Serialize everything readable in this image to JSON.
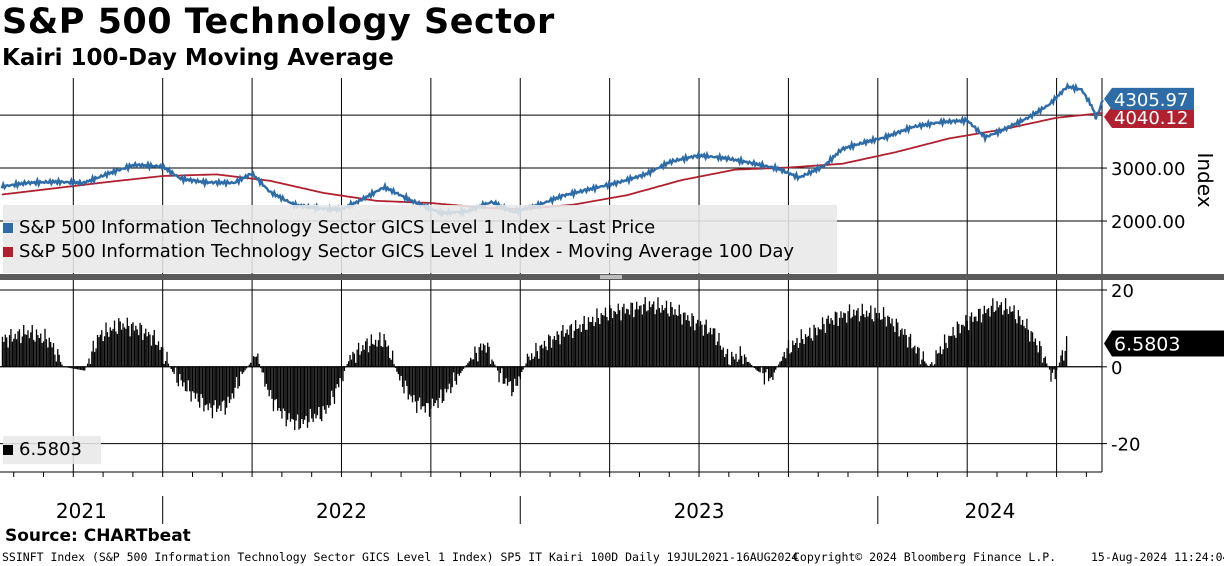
{
  "header": {
    "title": "S&P 500 Technology Sector",
    "subtitle": "Kairi 100-Day Moving Average"
  },
  "source": "Source: CHARTbeat",
  "footer": {
    "left": "SSINFT Index (S&P 500 Information Technology Sector GICS Level 1 Index) SP5 IT Kairi 100D  Daily 19JUL2021-16AUG2024",
    "center": "Copyright© 2024 Bloomberg Finance L.P.",
    "right": "15-Aug-2024 11:24:04"
  },
  "colors": {
    "price": "#2e6ca8",
    "ma": "#b0202e",
    "kairi": "#000000",
    "legend_bg": "#e8e8e8"
  },
  "legend_top": {
    "items": [
      {
        "label": "S&P 500 Information Technology Sector GICS Level 1 Index - Last Price",
        "color": "#2e6ca8"
      },
      {
        "label": "S&P 500 Information Technology Sector GICS Level 1 Index - Moving Average 100 Day",
        "color": "#b0202e"
      }
    ]
  },
  "legend_bottom": {
    "items": [
      {
        "label": "6.5803",
        "color": "#000000"
      }
    ]
  },
  "chart_data": [
    {
      "type": "line",
      "title": "S&P 500 Technology Sector",
      "ylabel": "Index",
      "yticks": [
        "2000.00",
        "3000.00"
      ],
      "ylim": [
        1000,
        4700
      ],
      "x_range": [
        "2021-07-19",
        "2024-08-16"
      ],
      "x_tick_labels": [
        "2021",
        "2022",
        "2023",
        "2024"
      ],
      "last_value_labels": [
        {
          "series": "Last Price",
          "value": "4305.97"
        },
        {
          "series": "Moving Average 100 Day",
          "value": "4040.12"
        }
      ],
      "series": [
        {
          "name": "S&P 500 Information Technology Sector GICS Level 1 Index - Last Price",
          "points": [
            [
              2021.55,
              2650
            ],
            [
              2021.62,
              2720
            ],
            [
              2021.7,
              2740
            ],
            [
              2021.78,
              2720
            ],
            [
              2021.85,
              2900
            ],
            [
              2021.92,
              3060
            ],
            [
              2022.0,
              3030
            ],
            [
              2022.05,
              2800
            ],
            [
              2022.12,
              2730
            ],
            [
              2022.2,
              2720
            ],
            [
              2022.25,
              2900
            ],
            [
              2022.3,
              2550
            ],
            [
              2022.37,
              2300
            ],
            [
              2022.45,
              2230
            ],
            [
              2022.5,
              2220
            ],
            [
              2022.55,
              2380
            ],
            [
              2022.62,
              2640
            ],
            [
              2022.7,
              2370
            ],
            [
              2022.78,
              2150
            ],
            [
              2022.85,
              2180
            ],
            [
              2022.92,
              2360
            ],
            [
              2022.98,
              2170
            ],
            [
              2023.05,
              2300
            ],
            [
              2023.12,
              2480
            ],
            [
              2023.2,
              2610
            ],
            [
              2023.27,
              2720
            ],
            [
              2023.35,
              2880
            ],
            [
              2023.42,
              3120
            ],
            [
              2023.5,
              3240
            ],
            [
              2023.58,
              3180
            ],
            [
              2023.65,
              3090
            ],
            [
              2023.72,
              2990
            ],
            [
              2023.78,
              2820
            ],
            [
              2023.85,
              3040
            ],
            [
              2023.9,
              3360
            ],
            [
              2023.96,
              3480
            ],
            [
              2024.02,
              3580
            ],
            [
              2024.1,
              3780
            ],
            [
              2024.18,
              3870
            ],
            [
              2024.25,
              3900
            ],
            [
              2024.3,
              3580
            ],
            [
              2024.35,
              3720
            ],
            [
              2024.42,
              3950
            ],
            [
              2024.48,
              4200
            ],
            [
              2024.53,
              4540
            ],
            [
              2024.57,
              4480
            ],
            [
              2024.6,
              4150
            ],
            [
              2024.61,
              3950
            ],
            [
              2024.62,
              4100
            ],
            [
              2024.63,
              4305.97
            ]
          ]
        },
        {
          "name": "S&P 500 Information Technology Sector GICS Level 1 Index - Moving Average 100 Day",
          "points": [
            [
              2021.55,
              2500
            ],
            [
              2021.7,
              2620
            ],
            [
              2021.85,
              2740
            ],
            [
              2022.0,
              2850
            ],
            [
              2022.15,
              2880
            ],
            [
              2022.3,
              2760
            ],
            [
              2022.45,
              2530
            ],
            [
              2022.6,
              2380
            ],
            [
              2022.75,
              2340
            ],
            [
              2022.9,
              2250
            ],
            [
              2023.0,
              2220
            ],
            [
              2023.15,
              2310
            ],
            [
              2023.3,
              2490
            ],
            [
              2023.45,
              2770
            ],
            [
              2023.6,
              2970
            ],
            [
              2023.75,
              3010
            ],
            [
              2023.9,
              3080
            ],
            [
              2024.05,
              3300
            ],
            [
              2024.2,
              3560
            ],
            [
              2024.35,
              3730
            ],
            [
              2024.5,
              3950
            ],
            [
              2024.63,
              4040.12
            ]
          ]
        }
      ]
    },
    {
      "type": "bar",
      "title": "Kairi 100-Day Moving Average",
      "yticks": [
        -20,
        0,
        20
      ],
      "ylim": [
        -30,
        20
      ],
      "last_value": "6.5803",
      "series": [
        {
          "name": "Kairi 100D",
          "points": [
            [
              2021.55,
              7
            ],
            [
              2021.62,
              9
            ],
            [
              2021.68,
              7
            ],
            [
              2021.72,
              0
            ],
            [
              2021.78,
              -1
            ],
            [
              2021.82,
              8
            ],
            [
              2021.88,
              11
            ],
            [
              2021.93,
              10
            ],
            [
              2021.98,
              7
            ],
            [
              2022.03,
              -2
            ],
            [
              2022.08,
              -7
            ],
            [
              2022.13,
              -11
            ],
            [
              2022.18,
              -10
            ],
            [
              2022.22,
              -2
            ],
            [
              2022.26,
              3
            ],
            [
              2022.3,
              -8
            ],
            [
              2022.34,
              -13
            ],
            [
              2022.38,
              -15
            ],
            [
              2022.42,
              -13
            ],
            [
              2022.45,
              -12
            ],
            [
              2022.48,
              -7
            ],
            [
              2022.52,
              2
            ],
            [
              2022.57,
              6
            ],
            [
              2022.62,
              7
            ],
            [
              2022.66,
              -3
            ],
            [
              2022.7,
              -9
            ],
            [
              2022.74,
              -11
            ],
            [
              2022.78,
              -8
            ],
            [
              2022.82,
              -3
            ],
            [
              2022.86,
              2
            ],
            [
              2022.9,
              6
            ],
            [
              2022.94,
              -2
            ],
            [
              2022.98,
              -6
            ],
            [
              2023.02,
              2
            ],
            [
              2023.07,
              6
            ],
            [
              2023.12,
              9
            ],
            [
              2023.18,
              11
            ],
            [
              2023.24,
              14
            ],
            [
              2023.3,
              15
            ],
            [
              2023.36,
              16
            ],
            [
              2023.42,
              15
            ],
            [
              2023.48,
              12
            ],
            [
              2023.54,
              9
            ],
            [
              2023.58,
              2
            ],
            [
              2023.62,
              3
            ],
            [
              2023.66,
              -1
            ],
            [
              2023.7,
              -3
            ],
            [
              2023.74,
              4
            ],
            [
              2023.78,
              7
            ],
            [
              2023.82,
              9
            ],
            [
              2023.86,
              12
            ],
            [
              2023.92,
              14
            ],
            [
              2023.97,
              14
            ],
            [
              2024.02,
              13
            ],
            [
              2024.07,
              9
            ],
            [
              2024.11,
              4
            ],
            [
              2024.14,
              0
            ],
            [
              2024.17,
              4
            ],
            [
              2024.21,
              9
            ],
            [
              2024.25,
              12
            ],
            [
              2024.29,
              14
            ],
            [
              2024.33,
              16
            ],
            [
              2024.37,
              15
            ],
            [
              2024.41,
              11
            ],
            [
              2024.45,
              5
            ],
            [
              2024.47,
              1
            ],
            [
              2024.49,
              -3
            ],
            [
              2024.51,
              2
            ],
            [
              2024.53,
              6.5803
            ]
          ]
        }
      ]
    }
  ]
}
